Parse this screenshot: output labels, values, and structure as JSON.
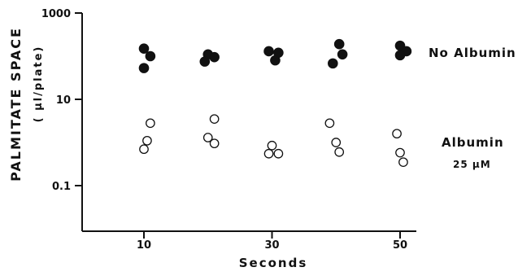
{
  "chart_data": {
    "type": "scatter",
    "title": "",
    "xlabel": "Seconds",
    "ylabel_main": "PALMITATE SPACE",
    "ylabel_unit": "( μl/plate)",
    "x_ticks": [
      10,
      30,
      50
    ],
    "x_tick_labels": [
      "10",
      "30",
      "50"
    ],
    "x_range": [
      0,
      52
    ],
    "y_scale": "log",
    "y_ticks": [
      0.1,
      10,
      1000
    ],
    "y_tick_labels": [
      "0.1",
      "10",
      "1000"
    ],
    "y_range": [
      0.01,
      1000
    ],
    "grid": false,
    "legend": "direct labels beside each series at right",
    "series": [
      {
        "name": "No Albumin",
        "marker": "filled-circle",
        "color": "#111111",
        "points": [
          {
            "x": 10.0,
            "y": 150
          },
          {
            "x": 11.0,
            "y": 100
          },
          {
            "x": 10.0,
            "y": 53
          },
          {
            "x": 20.0,
            "y": 110
          },
          {
            "x": 21.0,
            "y": 95
          },
          {
            "x": 19.5,
            "y": 75
          },
          {
            "x": 29.5,
            "y": 130
          },
          {
            "x": 31.0,
            "y": 120
          },
          {
            "x": 30.5,
            "y": 80
          },
          {
            "x": 40.5,
            "y": 190
          },
          {
            "x": 41.0,
            "y": 110
          },
          {
            "x": 39.5,
            "y": 68
          },
          {
            "x": 50.0,
            "y": 175
          },
          {
            "x": 51.0,
            "y": 130
          },
          {
            "x": 50.0,
            "y": 105
          }
        ]
      },
      {
        "name": "Albumin",
        "name_line2": "25 μM",
        "marker": "open-circle",
        "color": "#111111",
        "points": [
          {
            "x": 11.0,
            "y": 2.8
          },
          {
            "x": 10.5,
            "y": 1.1
          },
          {
            "x": 10.0,
            "y": 0.7
          },
          {
            "x": 21.0,
            "y": 3.5
          },
          {
            "x": 20.0,
            "y": 1.3
          },
          {
            "x": 21.0,
            "y": 0.95
          },
          {
            "x": 30.0,
            "y": 0.85
          },
          {
            "x": 29.5,
            "y": 0.55
          },
          {
            "x": 31.0,
            "y": 0.55
          },
          {
            "x": 39.0,
            "y": 2.8
          },
          {
            "x": 40.0,
            "y": 1.0
          },
          {
            "x": 40.5,
            "y": 0.6
          },
          {
            "x": 49.5,
            "y": 1.6
          },
          {
            "x": 50.0,
            "y": 0.58
          },
          {
            "x": 50.5,
            "y": 0.35
          }
        ]
      }
    ]
  }
}
